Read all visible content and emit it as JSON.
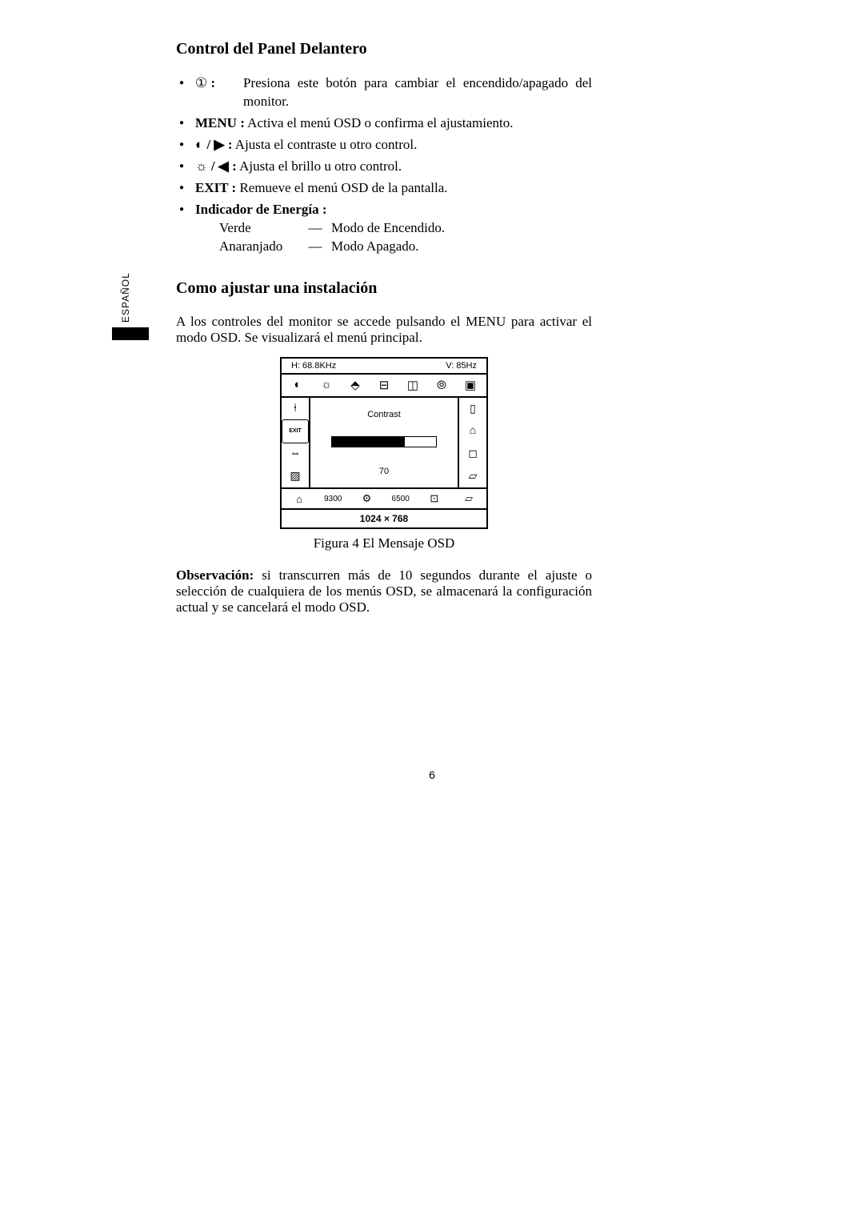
{
  "side_label": "ESPAÑOL",
  "section1_title": "Control del Panel Delantero",
  "bullets": {
    "power": {
      "icon": "①",
      "colon": ":",
      "text": "Presiona este botón para cambiar el encendido/apagado del monitor."
    },
    "menu": {
      "label": "MENU :",
      "text": " Activa el menú OSD o confirma el ajustamiento."
    },
    "contrast": {
      "icons": "◐ / ▶ :",
      "text": "  Ajusta el contraste u otro control."
    },
    "bright": {
      "icons": "☼ / ◀ :",
      "text": "  Ajusta el brillo u otro control."
    },
    "exit": {
      "label": "EXIT :",
      "text": "   Remueve el menú OSD de la pantalla."
    },
    "indicator": {
      "label": "Indicador de Energía :",
      "rows": [
        {
          "c1": "Verde",
          "c2": "—",
          "c3": "Modo de Encendido."
        },
        {
          "c1": "Anaranjado",
          "c2": "—",
          "c3": "Modo Apagado."
        }
      ]
    }
  },
  "section2_title": "Como ajustar una instalación",
  "section2_para": "A los controles del monitor se accede pulsando el MENU para activar el modo OSD. Se visualizará el menú principal.",
  "osd": {
    "h_freq": "H: 68.8KHz",
    "v_freq": "V: 85Hz",
    "top_icons": [
      "◐",
      "☼",
      "⬘",
      "⊟",
      "◫",
      "⦾",
      "▣"
    ],
    "left_icons": [
      "⍿",
      "EXIT",
      "⇔",
      "▨"
    ],
    "right_icons": [
      "▯",
      "⌂",
      "◻",
      "▱"
    ],
    "center_label": "Contrast",
    "value": "70",
    "bar_fill_pct": 70,
    "bottom_items": [
      "⌂",
      "9300",
      "⚙",
      "6500",
      "⊡"
    ],
    "resolution": "1024 × 768"
  },
  "fig_caption": "Figura 4    El Mensaje OSD",
  "obs_label": "Observación:",
  "obs_text": "  si transcurren más de 10 segundos durante el ajuste o selección de cualquiera de los menús OSD, se almacenará la configuración actual y se cancelará el modo OSD.",
  "page_number": "6"
}
